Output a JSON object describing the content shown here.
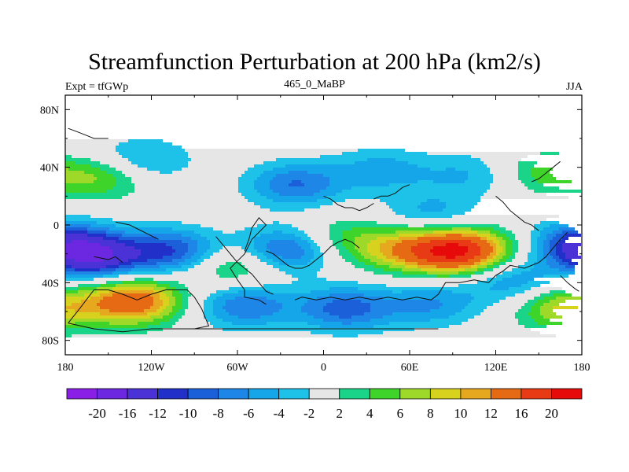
{
  "chart_data": {
    "type": "contour-map",
    "title": "Streamfunction Perturbation at 200 hPa (km2/s)",
    "left_string": "Expt = tfGWp",
    "center_string": "465_0_MaBP",
    "right_string": "JJA",
    "x_ticks": [
      "180",
      "120W",
      "60W",
      "0",
      "60E",
      "120E",
      "180"
    ],
    "x_tick_values": [
      -180,
      -120,
      -60,
      0,
      60,
      120,
      180
    ],
    "y_ticks": [
      "80N",
      "40N",
      "0",
      "40S",
      "80S"
    ],
    "y_tick_values": [
      80,
      40,
      0,
      -40,
      -80
    ],
    "xlim": [
      -180,
      180
    ],
    "ylim": [
      -90,
      90
    ],
    "colorbar": {
      "labels": [
        "-20",
        "-16",
        "-12",
        "-10",
        "-8",
        "-6",
        "-4",
        "-2",
        "2",
        "4",
        "6",
        "8",
        "10",
        "12",
        "16",
        "20"
      ],
      "colors": [
        "#8a1ee6",
        "#6b28e0",
        "#4b32d6",
        "#2030c8",
        "#1b5fd9",
        "#1e86e6",
        "#14a6e8",
        "#1ec2e8",
        "#e6e6e6",
        "#1ad48a",
        "#3ed42a",
        "#9ed829",
        "#d6d21e",
        "#e6a81e",
        "#e66a14",
        "#e83a14",
        "#e60a0a"
      ]
    },
    "anomalies": [
      {
        "lon": 160,
        "lat": 38,
        "amp": 6
      },
      {
        "lon": -155,
        "lat": 33,
        "amp": 6
      },
      {
        "lon": -125,
        "lat": 45,
        "amp": -5
      },
      {
        "lon": -20,
        "lat": 28,
        "amp": -8
      },
      {
        "lon": 40,
        "lat": 38,
        "amp": -5
      },
      {
        "lon": 100,
        "lat": 35,
        "amp": -4
      },
      {
        "lon": 175,
        "lat": 53,
        "amp": -2
      },
      {
        "lon": 75,
        "lat": 7,
        "amp": -5
      },
      {
        "lon": -160,
        "lat": -22,
        "amp": -14
      },
      {
        "lon": -105,
        "lat": -18,
        "amp": -10
      },
      {
        "lon": -25,
        "lat": -17,
        "amp": -10
      },
      {
        "lon": 95,
        "lat": -18,
        "amp": 20
      },
      {
        "lon": 55,
        "lat": -17,
        "amp": 9
      },
      {
        "lon": -62,
        "lat": -28,
        "amp": 6
      },
      {
        "lon": 10,
        "lat": -10,
        "amp": 5
      },
      {
        "lon": 130,
        "lat": -38,
        "amp": -6
      },
      {
        "lon": 178,
        "lat": -12,
        "amp": -9
      },
      {
        "lon": -133,
        "lat": -53,
        "amp": 15
      },
      {
        "lon": -55,
        "lat": -56,
        "amp": -8
      },
      {
        "lon": 15,
        "lat": -58,
        "amp": -9
      },
      {
        "lon": 75,
        "lat": -55,
        "amp": -6
      },
      {
        "lon": 170,
        "lat": -58,
        "amp": 9
      }
    ],
    "coastlines": [
      [
        [
          -178,
          -68
        ],
        [
          -170,
          -58
        ],
        [
          -160,
          -45
        ],
        [
          -150,
          -45
        ],
        [
          -140,
          -48
        ],
        [
          -130,
          -52
        ],
        [
          -120,
          -48
        ],
        [
          -110,
          -45
        ],
        [
          -95,
          -45
        ],
        [
          -90,
          -50
        ],
        [
          -85,
          -58
        ],
        [
          -80,
          -70
        ],
        [
          -90,
          -72
        ],
        [
          -100,
          -72
        ]
      ],
      [
        [
          -178,
          67
        ],
        [
          -170,
          64
        ],
        [
          -165,
          62
        ],
        [
          -160,
          60
        ],
        [
          -150,
          60
        ]
      ],
      [
        [
          -145,
          2
        ],
        [
          -135,
          0
        ],
        [
          -125,
          -5
        ],
        [
          -115,
          -10
        ]
      ],
      [
        [
          -160,
          -22
        ],
        [
          -150,
          -24
        ],
        [
          -145,
          -22
        ],
        [
          -140,
          -26
        ]
      ],
      [
        [
          -40,
          -55
        ],
        [
          -45,
          -52
        ],
        [
          -55,
          -50
        ],
        [
          -55,
          -45
        ],
        [
          -60,
          -38
        ],
        [
          -65,
          -30
        ],
        [
          -60,
          -25
        ],
        [
          -55,
          -20
        ],
        [
          -50,
          -10
        ],
        [
          -45,
          -5
        ],
        [
          -40,
          0
        ],
        [
          -45,
          5
        ],
        [
          -50,
          -2
        ],
        [
          -52,
          -10
        ],
        [
          -55,
          -18
        ]
      ],
      [
        [
          -20,
          -52
        ],
        [
          -15,
          -50
        ],
        [
          -5,
          -52
        ],
        [
          5,
          -50
        ],
        [
          15,
          -52
        ],
        [
          25,
          -50
        ],
        [
          35,
          -52
        ],
        [
          45,
          -50
        ],
        [
          55,
          -52
        ],
        [
          65,
          -50
        ],
        [
          75,
          -52
        ],
        [
          80,
          -48
        ],
        [
          85,
          -40
        ],
        [
          95,
          -40
        ],
        [
          105,
          -38
        ],
        [
          115,
          -40
        ],
        [
          120,
          -35
        ],
        [
          125,
          -32
        ],
        [
          130,
          -28
        ],
        [
          140,
          -30
        ],
        [
          150,
          -26
        ],
        [
          155,
          -22
        ],
        [
          160,
          -16
        ],
        [
          165,
          -10
        ],
        [
          170,
          -5
        ]
      ],
      [
        [
          -75,
          -8
        ],
        [
          -70,
          -14
        ],
        [
          -65,
          -20
        ],
        [
          -60,
          -26
        ],
        [
          -55,
          -30
        ],
        [
          -50,
          -34
        ],
        [
          -45,
          -40
        ],
        [
          -40,
          -46
        ],
        [
          -35,
          -48
        ]
      ],
      [
        [
          -40,
          -18
        ],
        [
          -35,
          -20
        ],
        [
          -30,
          -24
        ],
        [
          -25,
          -28
        ],
        [
          -20,
          -30
        ],
        [
          -15,
          -30
        ],
        [
          -10,
          -28
        ],
        [
          -5,
          -24
        ],
        [
          0,
          -20
        ],
        [
          5,
          -15
        ],
        [
          10,
          -12
        ],
        [
          15,
          -10
        ],
        [
          20,
          -12
        ],
        [
          25,
          -16
        ]
      ],
      [
        [
          0,
          20
        ],
        [
          5,
          18
        ],
        [
          10,
          14
        ],
        [
          15,
          12
        ],
        [
          20,
          12
        ],
        [
          25,
          10
        ],
        [
          30,
          12
        ],
        [
          35,
          15
        ]
      ],
      [
        [
          35,
          18
        ],
        [
          40,
          20
        ],
        [
          45,
          20
        ],
        [
          50,
          22
        ],
        [
          55,
          26
        ],
        [
          60,
          28
        ]
      ],
      [
        [
          120,
          20
        ],
        [
          125,
          16
        ],
        [
          130,
          10
        ],
        [
          135,
          6
        ],
        [
          140,
          2
        ],
        [
          145,
          0
        ],
        [
          150,
          -4
        ]
      ],
      [
        [
          145,
          30
        ],
        [
          150,
          32
        ],
        [
          155,
          36
        ],
        [
          160,
          40
        ],
        [
          165,
          44
        ]
      ],
      [
        [
          165,
          -35
        ],
        [
          170,
          -40
        ],
        [
          175,
          -44
        ],
        [
          178,
          -46
        ]
      ],
      [
        [
          -178,
          -68
        ],
        [
          -160,
          -72
        ],
        [
          -140,
          -74
        ],
        [
          -120,
          -72
        ],
        [
          -100,
          -72
        ],
        [
          -80,
          -72
        ],
        [
          -60,
          -72
        ],
        [
          -40,
          -72
        ],
        [
          -20,
          -72
        ],
        [
          0,
          -72
        ],
        [
          20,
          -72
        ],
        [
          40,
          -72
        ],
        [
          60,
          -72
        ],
        [
          80,
          -72
        ]
      ]
    ]
  }
}
